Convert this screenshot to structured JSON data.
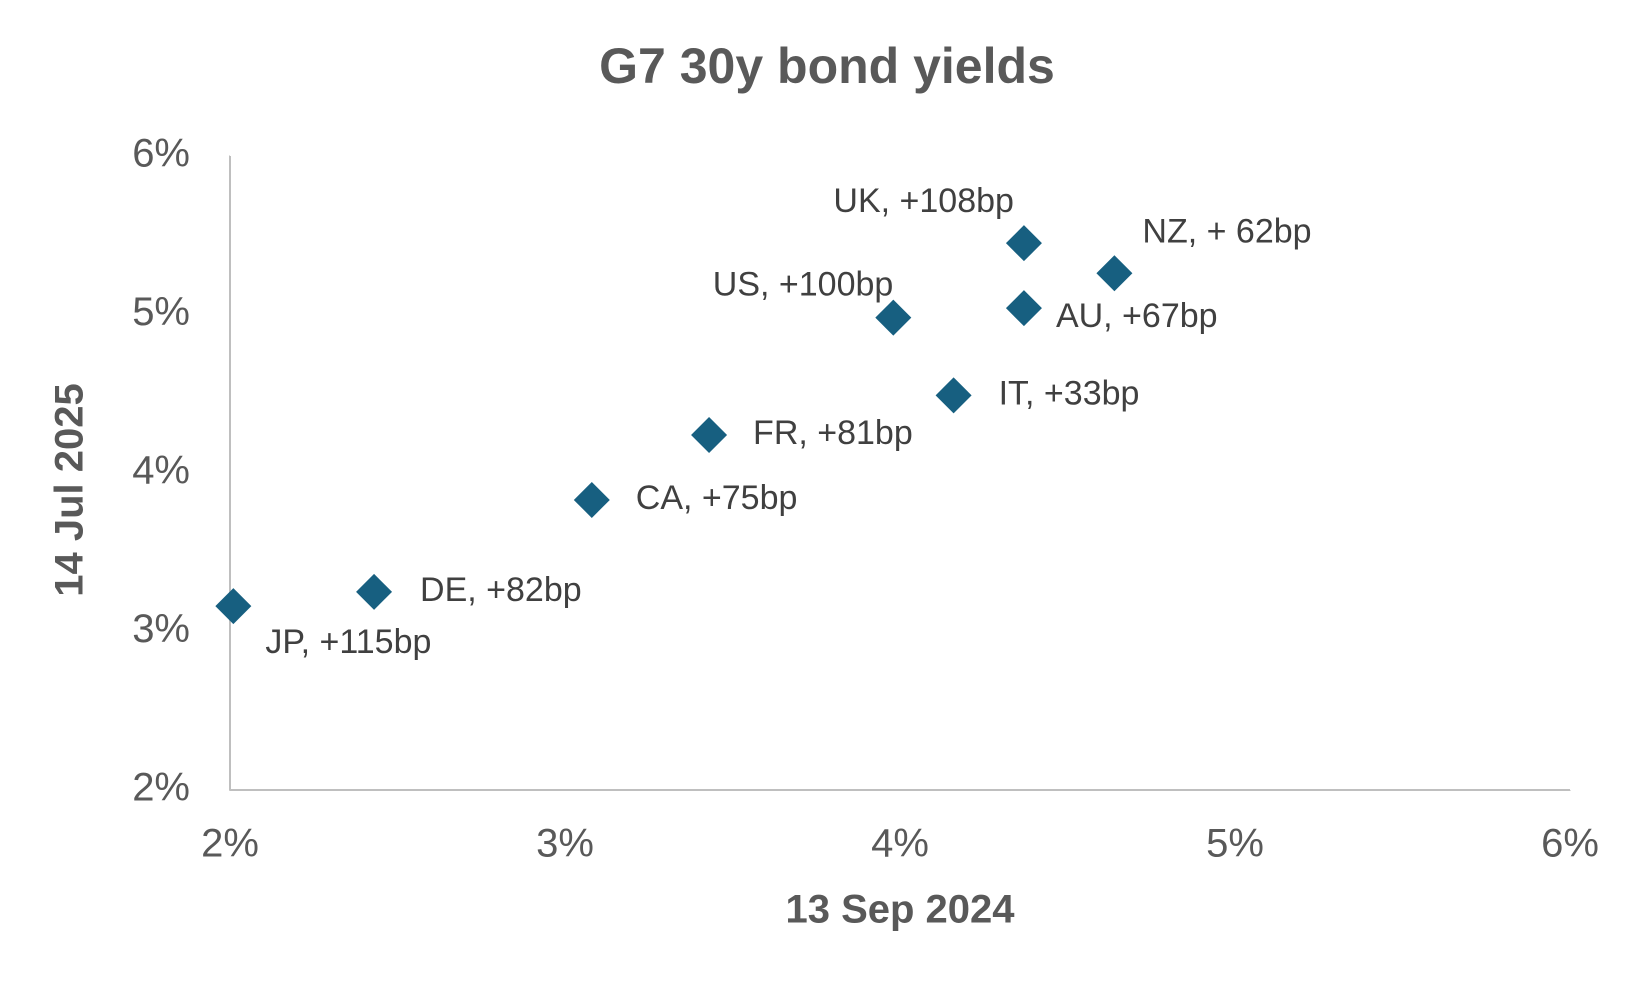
{
  "chart_data": {
    "type": "scatter",
    "title": "G7 30y bond yields",
    "x_label": "13 Sep 2024",
    "y_label": "14 Jul 2025",
    "xlim": [
      2,
      6
    ],
    "ylim": [
      2,
      6
    ],
    "xticks": [
      {
        "value": 2,
        "label": "2%"
      },
      {
        "value": 3,
        "label": "3%"
      },
      {
        "value": 4,
        "label": "4%"
      },
      {
        "value": 5,
        "label": "5%"
      },
      {
        "value": 6,
        "label": "6%"
      }
    ],
    "yticks": [
      {
        "value": 2,
        "label": "2%"
      },
      {
        "value": 3,
        "label": "3%"
      },
      {
        "value": 4,
        "label": "4%"
      },
      {
        "value": 5,
        "label": "5%"
      },
      {
        "value": 6,
        "label": "6%"
      }
    ],
    "grid": false,
    "color": "#175f80",
    "labels": [
      "JP, +115bp",
      "DE, +82bp",
      "CA, +75bp",
      "FR, +81bp",
      "US, +100bp",
      "IT, +33bp",
      "UK, +108bp",
      "AU, +67bp",
      "NZ, + 62bp"
    ],
    "x": [
      2.01,
      2.43,
      3.08,
      3.43,
      3.98,
      4.16,
      4.37,
      4.37,
      4.64
    ],
    "y": [
      3.16,
      3.25,
      3.83,
      4.24,
      4.98,
      4.49,
      5.45,
      5.04,
      5.26
    ]
  }
}
